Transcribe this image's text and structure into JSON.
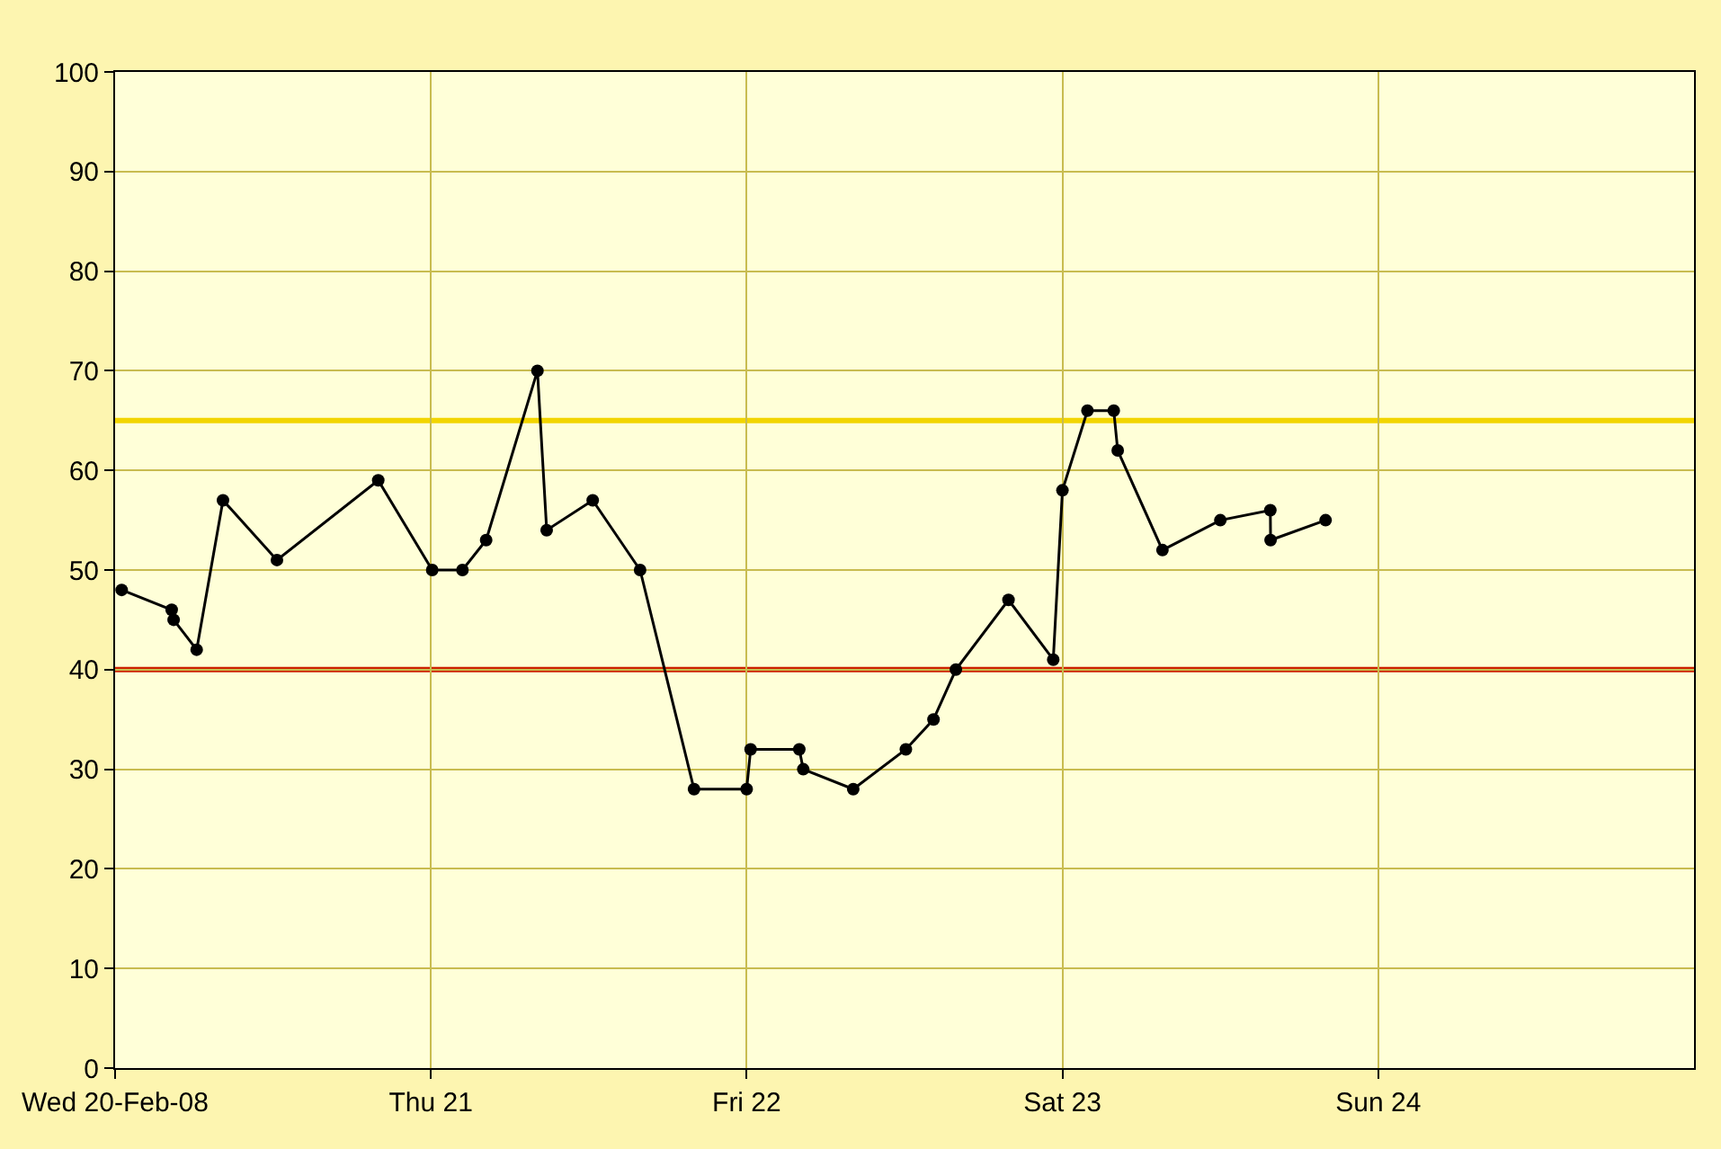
{
  "chart_data": {
    "type": "line",
    "x": [
      "--02-20T00:30",
      "--02-20T04:18",
      "--02-20T04:27",
      "--02-20T06:12",
      "--02-20T08:12",
      "--02-20T12:18",
      "--02-20T20:00",
      "--02-21T00:06",
      "--02-21T02:24",
      "--02-21T04:12",
      "--02-21T08:06",
      "--02-21T08:48",
      "--02-21T12:18",
      "--02-21T15:54",
      "--02-21T20:00",
      "--02-22T00:00",
      "--02-22T00:18",
      "--02-22T04:00",
      "--02-22T04:18",
      "--02-22T08:06",
      "--02-22T12:06",
      "--02-22T14:12",
      "--02-22T15:54",
      "--02-22T19:54",
      "--02-22T23:18",
      "--02-23T00:00",
      "--02-23T01:54",
      "--02-23T03:54",
      "--02-23T04:12",
      "--02-23T07:36",
      "--02-23T12:00",
      "--02-23T15:48",
      "--02-23T15:49",
      "--02-23T20:00"
    ],
    "series": [
      {
        "color": "#000000",
        "values": [
          48,
          46,
          45,
          42,
          57,
          51,
          59,
          50,
          50,
          53,
          70,
          54,
          57,
          50,
          28,
          28,
          32,
          32,
          30,
          28,
          32,
          35,
          40,
          47,
          41,
          58,
          66,
          66,
          62,
          52,
          55,
          56,
          53,
          55
        ]
      }
    ],
    "xlim": [
      "--02-20",
      "--02-25"
    ],
    "xticks": [
      {
        "value": "--02-20",
        "label": "Wed 20-Feb-08"
      },
      {
        "value": "--02-21",
        "label": "Thu 21"
      },
      {
        "value": "--02-22",
        "label": "Fri 22"
      },
      {
        "value": "--02-23",
        "label": "Sat 23"
      },
      {
        "value": "--02-24",
        "label": "Sun 24"
      }
    ],
    "ylim": [
      0,
      100
    ],
    "yticks": [
      0,
      10,
      20,
      30,
      40,
      50,
      60,
      70,
      80,
      90,
      100
    ],
    "ref_lines": [
      {
        "axis": "y",
        "value": 65,
        "color": "#f2d500"
      },
      {
        "axis": "y",
        "value": 40,
        "color": "#cc2200"
      }
    ],
    "grid": true,
    "marker": "circle",
    "line_style": "solid",
    "legend": false
  }
}
